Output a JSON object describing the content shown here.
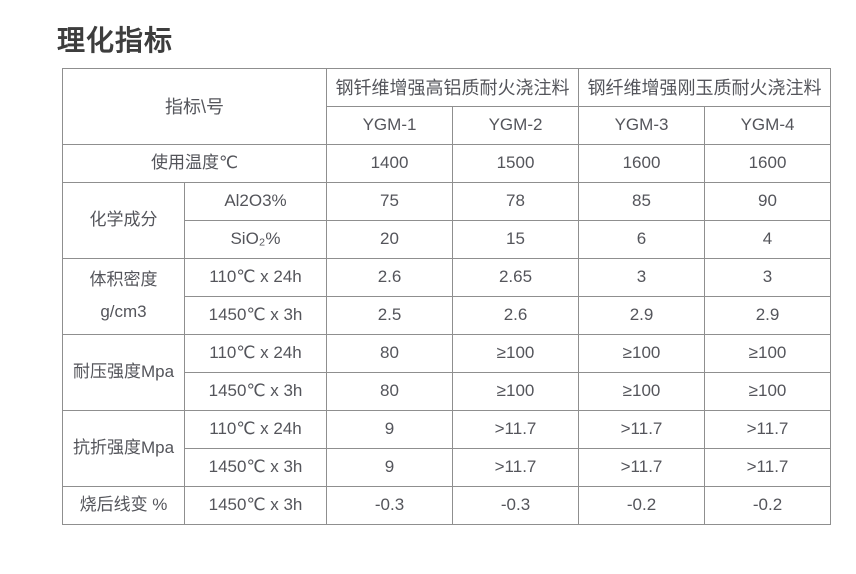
{
  "page": {
    "title": "理化指标"
  },
  "colors": {
    "title_text": "#3d3d3d",
    "table_text": "#54555b",
    "table_border": "#8f8f8f",
    "background": "#ffffff"
  },
  "table": {
    "corner_label": "指标\\号",
    "groups": [
      {
        "label": "钢钎维增强高铝质耐火浇注料",
        "models": [
          "YGM-1",
          "YGM-2"
        ]
      },
      {
        "label": "钢纤维增强刚玉质耐火浇注料",
        "models": [
          "YGM-3",
          "YGM-4"
        ]
      }
    ],
    "row_groups": [
      {
        "label_lines": [
          "使用温度℃"
        ],
        "label_colspan": 2,
        "rows": [
          {
            "condition": null,
            "values": [
              "1400",
              "1500",
              "1600",
              "1600"
            ]
          }
        ]
      },
      {
        "label_lines": [
          "化学成分"
        ],
        "rows": [
          {
            "condition": "Al2O3%",
            "values": [
              "75",
              "78",
              "85",
              "90"
            ]
          },
          {
            "condition": "SiO₂%",
            "values": [
              "20",
              "15",
              "6",
              "4"
            ]
          }
        ]
      },
      {
        "label_lines": [
          "体积密度",
          "g/cm3"
        ],
        "rows": [
          {
            "condition": "110℃ x 24h",
            "values": [
              "2.6",
              "2.65",
              "3",
              "3"
            ]
          },
          {
            "condition": "1450℃ x 3h",
            "values": [
              "2.5",
              "2.6",
              "2.9",
              "2.9"
            ]
          }
        ]
      },
      {
        "label_lines": [
          "耐压强度Mpa"
        ],
        "rows": [
          {
            "condition": "110℃ x 24h",
            "values": [
              "80",
              "≥100",
              "≥100",
              "≥100"
            ]
          },
          {
            "condition": "1450℃ x 3h",
            "values": [
              "80",
              "≥100",
              "≥100",
              "≥100"
            ]
          }
        ]
      },
      {
        "label_lines": [
          "抗折强度Mpa"
        ],
        "rows": [
          {
            "condition": "110℃ x 24h",
            "values": [
              "9",
              ">11.7",
              ">11.7",
              ">11.7"
            ]
          },
          {
            "condition": "1450℃ x 3h",
            "values": [
              "9",
              ">11.7",
              ">11.7",
              ">11.7"
            ]
          }
        ]
      },
      {
        "label_lines": [
          "烧后线变 %"
        ],
        "rows": [
          {
            "condition": "1450℃ x 3h",
            "values": [
              "-0.3",
              "-0.3",
              "-0.2",
              "-0.2"
            ]
          }
        ]
      }
    ]
  }
}
